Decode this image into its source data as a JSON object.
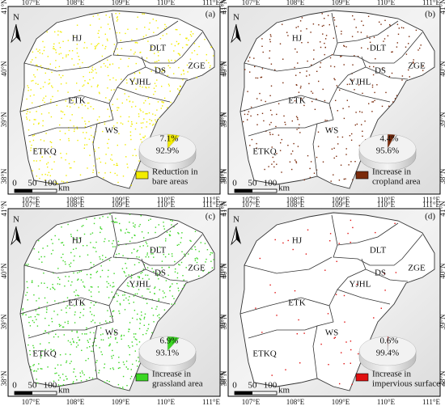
{
  "panels": [
    {
      "letter": "(a)",
      "legend": [
        "Reduction in",
        "bare areas"
      ],
      "color": "#f2ec00",
      "pie": {
        "values": [
          7.1,
          92.9
        ],
        "value_labels": [
          "7.1%",
          "92.9%"
        ]
      }
    },
    {
      "letter": "(b)",
      "legend": [
        "Increase in",
        "cropland area"
      ],
      "color": "#7a2a0a",
      "pie": {
        "values": [
          4.4,
          95.6
        ],
        "value_labels": [
          "4.4%",
          "95.6%"
        ]
      }
    },
    {
      "letter": "(c)",
      "legend": [
        "Increase in",
        "grassland area"
      ],
      "color": "#3ad622",
      "pie": {
        "values": [
          6.9,
          93.1
        ],
        "value_labels": [
          "6.9%",
          "93.1%"
        ]
      }
    },
    {
      "letter": "(d)",
      "legend": [
        "Increase in",
        "impervious surface area"
      ],
      "color": "#e01010",
      "pie": {
        "values": [
          0.6,
          99.4
        ],
        "value_labels": [
          "0.6%",
          "99.4%"
        ]
      }
    }
  ],
  "regions": [
    "HJ",
    "DLT",
    "DS",
    "ZGE",
    "YJHL",
    "ETK",
    "WS",
    "ETKQ"
  ],
  "lon_ticks": [
    "107°E",
    "108°E",
    "109°E",
    "110°E",
    "111°E"
  ],
  "lat_ticks": [
    "41°N",
    "40°N",
    "39°N",
    "38°N"
  ],
  "scale_labels": [
    "0",
    "50",
    "100"
  ],
  "scale_unit": "km",
  "north": "N"
}
